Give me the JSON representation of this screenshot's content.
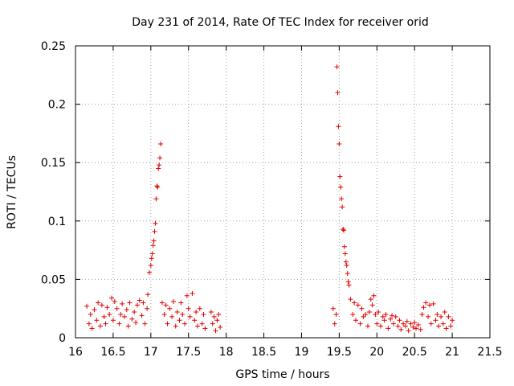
{
  "chart_data": {
    "type": "scatter",
    "title": "Day 231 of 2014, Rate Of TEC Index for receiver orid",
    "xlabel": "GPS time / hours",
    "ylabel": "ROTI / TECUs",
    "xlim": [
      16,
      21.5
    ],
    "ylim": [
      0,
      0.25
    ],
    "x_ticks": [
      "16",
      "16.5",
      "17",
      "17.5",
      "18",
      "18.5",
      "19",
      "19.5",
      "20",
      "20.5",
      "21",
      "21.5"
    ],
    "y_ticks": [
      "0",
      "0.05",
      "0.1",
      "0.15",
      "0.2",
      "0.25"
    ],
    "x_tick_values": [
      16,
      16.5,
      17,
      17.5,
      18,
      18.5,
      19,
      19.5,
      20,
      20.5,
      21,
      21.5
    ],
    "y_tick_values": [
      0,
      0.05,
      0.1,
      0.15,
      0.2,
      0.25
    ],
    "grid": true,
    "marker": "+",
    "marker_color": "#e00000",
    "series": [
      {
        "name": "ROTI",
        "points": [
          [
            16.15,
            0.027
          ],
          [
            16.18,
            0.012
          ],
          [
            16.2,
            0.02
          ],
          [
            16.22,
            0.008
          ],
          [
            16.25,
            0.024
          ],
          [
            16.28,
            0.015
          ],
          [
            16.3,
            0.03
          ],
          [
            16.33,
            0.01
          ],
          [
            16.35,
            0.028
          ],
          [
            16.38,
            0.018
          ],
          [
            16.4,
            0.012
          ],
          [
            16.42,
            0.026
          ],
          [
            16.45,
            0.02
          ],
          [
            16.48,
            0.034
          ],
          [
            16.5,
            0.015
          ],
          [
            16.52,
            0.031
          ],
          [
            16.55,
            0.025
          ],
          [
            16.58,
            0.012
          ],
          [
            16.6,
            0.02
          ],
          [
            16.62,
            0.029
          ],
          [
            16.65,
            0.018
          ],
          [
            16.68,
            0.024
          ],
          [
            16.7,
            0.01
          ],
          [
            16.72,
            0.03
          ],
          [
            16.75,
            0.016
          ],
          [
            16.78,
            0.022
          ],
          [
            16.8,
            0.013
          ],
          [
            16.82,
            0.028
          ],
          [
            16.85,
            0.032
          ],
          [
            16.88,
            0.019
          ],
          [
            16.9,
            0.03
          ],
          [
            16.92,
            0.012
          ],
          [
            16.95,
            0.025
          ],
          [
            16.96,
            0.037
          ],
          [
            16.98,
            0.056
          ],
          [
            17.0,
            0.062
          ],
          [
            17.01,
            0.068
          ],
          [
            17.02,
            0.072
          ],
          [
            17.03,
            0.079
          ],
          [
            17.04,
            0.083
          ],
          [
            17.05,
            0.091
          ],
          [
            17.06,
            0.098
          ],
          [
            17.07,
            0.119
          ],
          [
            17.08,
            0.13
          ],
          [
            17.09,
            0.129
          ],
          [
            17.1,
            0.145
          ],
          [
            17.11,
            0.148
          ],
          [
            17.12,
            0.154
          ],
          [
            17.13,
            0.166
          ],
          [
            17.15,
            0.03
          ],
          [
            17.18,
            0.02
          ],
          [
            17.2,
            0.028
          ],
          [
            17.22,
            0.012
          ],
          [
            17.25,
            0.025
          ],
          [
            17.28,
            0.018
          ],
          [
            17.3,
            0.031
          ],
          [
            17.33,
            0.01
          ],
          [
            17.35,
            0.022
          ],
          [
            17.38,
            0.015
          ],
          [
            17.4,
            0.03
          ],
          [
            17.42,
            0.02
          ],
          [
            17.45,
            0.012
          ],
          [
            17.48,
            0.036
          ],
          [
            17.5,
            0.025
          ],
          [
            17.52,
            0.018
          ],
          [
            17.55,
            0.038
          ],
          [
            17.58,
            0.015
          ],
          [
            17.6,
            0.022
          ],
          [
            17.62,
            0.01
          ],
          [
            17.65,
            0.025
          ],
          [
            17.68,
            0.012
          ],
          [
            17.7,
            0.02
          ],
          [
            17.72,
            0.008
          ],
          [
            17.8,
            0.022
          ],
          [
            17.82,
            0.012
          ],
          [
            17.84,
            0.018
          ],
          [
            17.86,
            0.006
          ],
          [
            17.88,
            0.015
          ],
          [
            17.9,
            0.02
          ],
          [
            17.92,
            0.009
          ],
          [
            19.42,
            0.025
          ],
          [
            19.44,
            0.012
          ],
          [
            19.46,
            0.02
          ],
          [
            19.47,
            0.232
          ],
          [
            19.48,
            0.21
          ],
          [
            19.49,
            0.181
          ],
          [
            19.5,
            0.166
          ],
          [
            19.51,
            0.138
          ],
          [
            19.52,
            0.129
          ],
          [
            19.53,
            0.119
          ],
          [
            19.54,
            0.112
          ],
          [
            19.55,
            0.093
          ],
          [
            19.56,
            0.092
          ],
          [
            19.57,
            0.078
          ],
          [
            19.58,
            0.072
          ],
          [
            19.59,
            0.065
          ],
          [
            19.6,
            0.062
          ],
          [
            19.61,
            0.055
          ],
          [
            19.62,
            0.048
          ],
          [
            19.63,
            0.045
          ],
          [
            19.65,
            0.033
          ],
          [
            19.68,
            0.02
          ],
          [
            19.7,
            0.03
          ],
          [
            19.72,
            0.015
          ],
          [
            19.75,
            0.028
          ],
          [
            19.78,
            0.012
          ],
          [
            19.8,
            0.025
          ],
          [
            19.82,
            0.018
          ],
          [
            19.85,
            0.02
          ],
          [
            19.88,
            0.01
          ],
          [
            19.9,
            0.022
          ],
          [
            19.92,
            0.033
          ],
          [
            19.94,
            0.028
          ],
          [
            19.96,
            0.036
          ],
          [
            19.98,
            0.02
          ],
          [
            20.0,
            0.012
          ],
          [
            20.02,
            0.022
          ],
          [
            20.05,
            0.01
          ],
          [
            20.08,
            0.018
          ],
          [
            20.1,
            0.015
          ],
          [
            20.12,
            0.02
          ],
          [
            20.15,
            0.008
          ],
          [
            20.18,
            0.016
          ],
          [
            20.2,
            0.019
          ],
          [
            20.22,
            0.012
          ],
          [
            20.25,
            0.018
          ],
          [
            20.28,
            0.01
          ],
          [
            20.3,
            0.015
          ],
          [
            20.32,
            0.007
          ],
          [
            20.35,
            0.012
          ],
          [
            20.38,
            0.01
          ],
          [
            20.4,
            0.014
          ],
          [
            20.42,
            0.006
          ],
          [
            20.45,
            0.012
          ],
          [
            20.48,
            0.009
          ],
          [
            20.5,
            0.013
          ],
          [
            20.52,
            0.008
          ],
          [
            20.55,
            0.011
          ],
          [
            20.58,
            0.007
          ],
          [
            20.6,
            0.02
          ],
          [
            20.62,
            0.026
          ],
          [
            20.65,
            0.03
          ],
          [
            20.68,
            0.018
          ],
          [
            20.7,
            0.028
          ],
          [
            20.72,
            0.012
          ],
          [
            20.75,
            0.029
          ],
          [
            20.78,
            0.015
          ],
          [
            20.8,
            0.02
          ],
          [
            20.82,
            0.01
          ],
          [
            20.85,
            0.018
          ],
          [
            20.88,
            0.012
          ],
          [
            20.9,
            0.022
          ],
          [
            20.92,
            0.008
          ],
          [
            20.95,
            0.018
          ],
          [
            20.98,
            0.01
          ],
          [
            21.0,
            0.015
          ]
        ]
      }
    ]
  }
}
